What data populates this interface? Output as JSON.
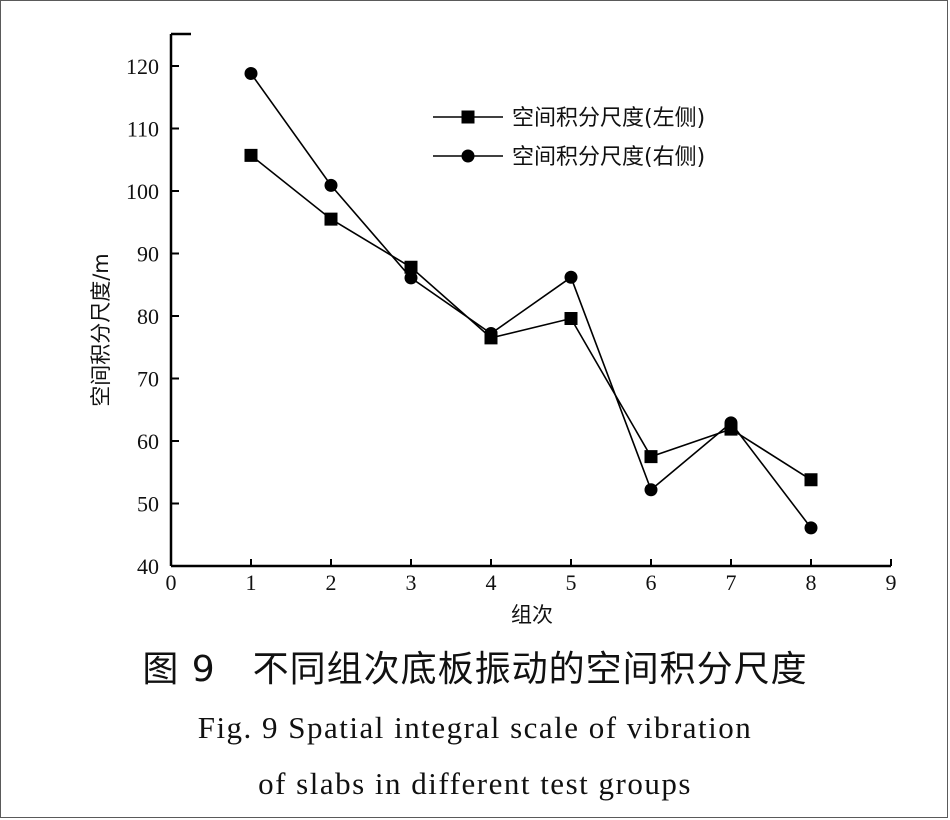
{
  "figure": {
    "title_cn": "图 9　不同组次底板振动的空间积分尺度",
    "caption_en_line1": "Fig. 9   Spatial integral scale of vibration",
    "caption_en_line2": "of slabs in different test groups"
  },
  "chart_data": {
    "type": "line",
    "xlabel": "组次",
    "ylabel": "空间积分尺度/m",
    "xlim": [
      0,
      9
    ],
    "ylim": [
      40,
      125
    ],
    "xticks": [
      0,
      1,
      2,
      3,
      4,
      5,
      6,
      7,
      8,
      9
    ],
    "yticks": [
      40,
      50,
      60,
      70,
      80,
      90,
      100,
      110,
      120
    ],
    "grid": false,
    "legend_position": "top-right",
    "series": [
      {
        "name": "空间积分尺度(左侧)",
        "marker": "square",
        "color": "#000000",
        "x": [
          1,
          2,
          3,
          4,
          5,
          6,
          7,
          8
        ],
        "y": [
          105.7,
          95.5,
          87.8,
          76.5,
          79.6,
          57.5,
          61.9,
          53.8
        ]
      },
      {
        "name": "空间积分尺度(右侧)",
        "marker": "circle",
        "color": "#000000",
        "x": [
          1,
          2,
          3,
          4,
          5,
          6,
          7,
          8
        ],
        "y": [
          118.8,
          100.9,
          86.1,
          77.2,
          86.2,
          52.2,
          62.9,
          46.1
        ]
      }
    ]
  }
}
